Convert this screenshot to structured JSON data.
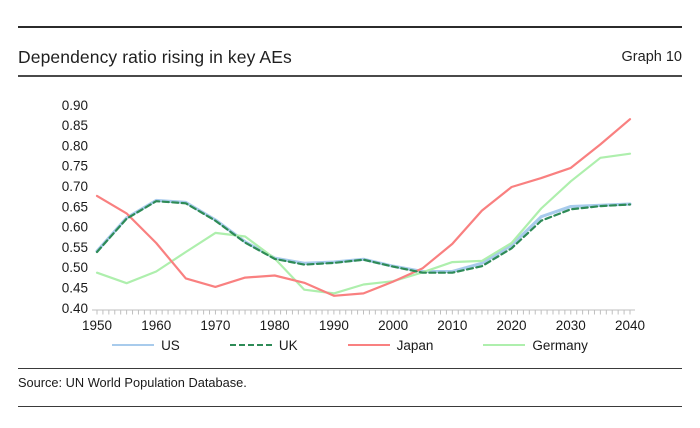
{
  "header": {
    "title": "Dependency ratio rising in key AEs",
    "graph_label": "Graph 10"
  },
  "footer": {
    "source": "Source: UN World Population Database."
  },
  "chart_data": {
    "type": "line",
    "title": "Dependency ratio rising in key AEs",
    "xlabel": "",
    "ylabel": "",
    "grid": false,
    "legend_position": "bottom",
    "xlim": [
      1950,
      2040
    ],
    "ylim": [
      0.4,
      0.9
    ],
    "xticks": [
      1950,
      1960,
      1970,
      1980,
      1990,
      2000,
      2010,
      2020,
      2030,
      2040
    ],
    "yticks": [
      "0.90",
      "0.85",
      "0.80",
      "0.75",
      "0.70",
      "0.65",
      "0.60",
      "0.55",
      "0.50",
      "0.45",
      "0.40"
    ],
    "minor_tick_interval_years": 1,
    "x": [
      1950,
      1955,
      1960,
      1965,
      1970,
      1975,
      1980,
      1985,
      1990,
      1995,
      2000,
      2005,
      2010,
      2015,
      2020,
      2025,
      2030,
      2035,
      2040
    ],
    "series": [
      {
        "name": "US",
        "color": "#A8CBEC",
        "dash": "solid",
        "values": [
          0.54,
          0.622,
          0.665,
          0.66,
          0.617,
          0.563,
          0.523,
          0.51,
          0.513,
          0.52,
          0.503,
          0.49,
          0.49,
          0.51,
          0.555,
          0.625,
          0.65,
          0.653,
          0.656
        ]
      },
      {
        "name": "UK",
        "color": "#2E8B57",
        "dash": "dashed",
        "values": [
          0.538,
          0.62,
          0.663,
          0.658,
          0.615,
          0.561,
          0.521,
          0.507,
          0.511,
          0.519,
          0.502,
          0.487,
          0.487,
          0.503,
          0.547,
          0.615,
          0.643,
          0.651,
          0.655
        ]
      },
      {
        "name": "Japan",
        "color": "#F98080",
        "dash": "solid",
        "values": [
          0.676,
          0.633,
          0.56,
          0.473,
          0.452,
          0.475,
          0.48,
          0.462,
          0.43,
          0.436,
          0.465,
          0.498,
          0.558,
          0.64,
          0.698,
          0.72,
          0.745,
          0.803,
          0.865
        ]
      },
      {
        "name": "Germany",
        "color": "#AEEFAD",
        "dash": "solid",
        "values": [
          0.487,
          0.461,
          0.49,
          0.538,
          0.585,
          0.576,
          0.522,
          0.445,
          0.436,
          0.458,
          0.466,
          0.488,
          0.513,
          0.516,
          0.56,
          0.645,
          0.712,
          0.77,
          0.78
        ]
      }
    ],
    "axis_color": "#bfbfbf",
    "text_color": "#1a1a1a"
  }
}
